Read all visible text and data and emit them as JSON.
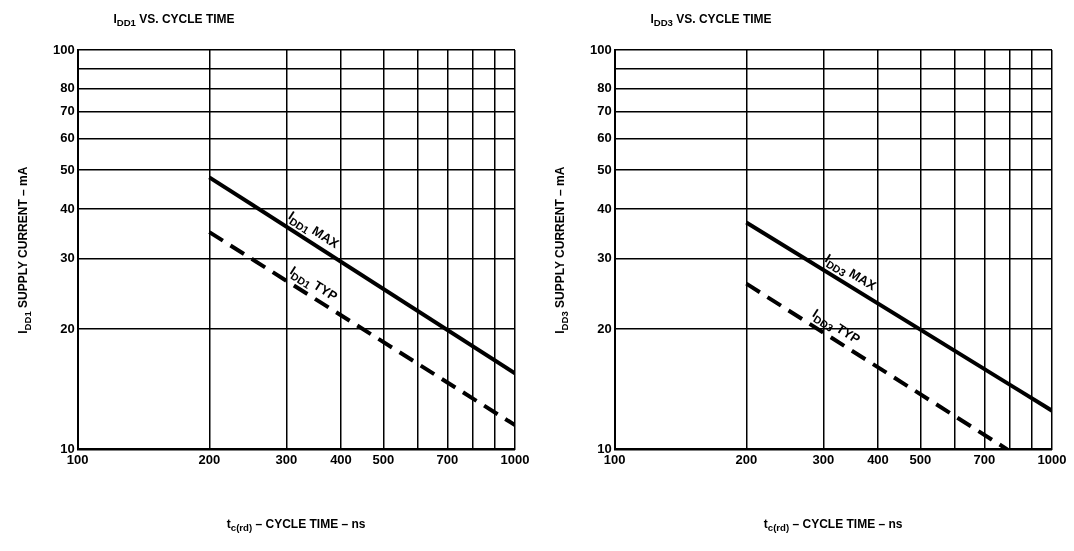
{
  "chart_data": [
    {
      "type": "line",
      "title": "I$_{DD1}$ VS. CYCLE TIME",
      "xlabel": "t$_{c(rd)}$ – CYCLE TIME – ns",
      "ylabel": "I$_{DD1}$ SUPPLY CURRENT – mA",
      "log": "xy",
      "grid": true,
      "legend": false,
      "marker": "none",
      "xlim": [
        100,
        1000
      ],
      "xticks": [
        100,
        200,
        300,
        400,
        500,
        {
          "value": 600,
          "label": null
        },
        700,
        {
          "value": 800,
          "label": null
        },
        {
          "value": 900,
          "label": null
        },
        1000
      ],
      "ylim": [
        10,
        100
      ],
      "yticks": [
        10,
        20,
        30,
        40,
        50,
        60,
        70,
        80,
        {
          "value": 90,
          "label": null
        },
        100
      ],
      "series": [
        {
          "name": "I$_{DD1}$ MAX",
          "color": "#000000",
          "line_style": "solid",
          "x": [
            200,
            1000
          ],
          "values": [
            48,
            15.5
          ]
        },
        {
          "name": "I$_{DD1}$ TYP",
          "color": "#000000",
          "line_style": "dashed",
          "x": [
            200,
            1000
          ],
          "values": [
            35,
            11.5
          ]
        }
      ]
    },
    {
      "type": "line",
      "title": "I$_{DD3}$ VS. CYCLE TIME",
      "xlabel": "t$_{c(rd)}$ – CYCLE TIME – ns",
      "ylabel": "I$_{DD3}$ SUPPLY CURRENT – mA",
      "log": "xy",
      "grid": true,
      "legend": false,
      "marker": "none",
      "xlim": [
        100,
        1000
      ],
      "xticks": [
        100,
        200,
        300,
        400,
        500,
        {
          "value": 600,
          "label": null
        },
        700,
        {
          "value": 800,
          "label": null
        },
        {
          "value": 900,
          "label": null
        },
        1000
      ],
      "ylim": [
        10,
        100
      ],
      "yticks": [
        10,
        20,
        30,
        40,
        50,
        60,
        70,
        80,
        {
          "value": 90,
          "label": null
        },
        100
      ],
      "series": [
        {
          "name": "I$_{DD3}$ MAX",
          "color": "#000000",
          "line_style": "solid",
          "x": [
            200,
            1000
          ],
          "values": [
            37,
            12.5
          ]
        },
        {
          "name": "I$_{DD3}$ TYP",
          "color": "#000000",
          "line_style": "dashed",
          "x": [
            200,
            790
          ],
          "values": [
            26,
            10
          ]
        }
      ]
    }
  ]
}
